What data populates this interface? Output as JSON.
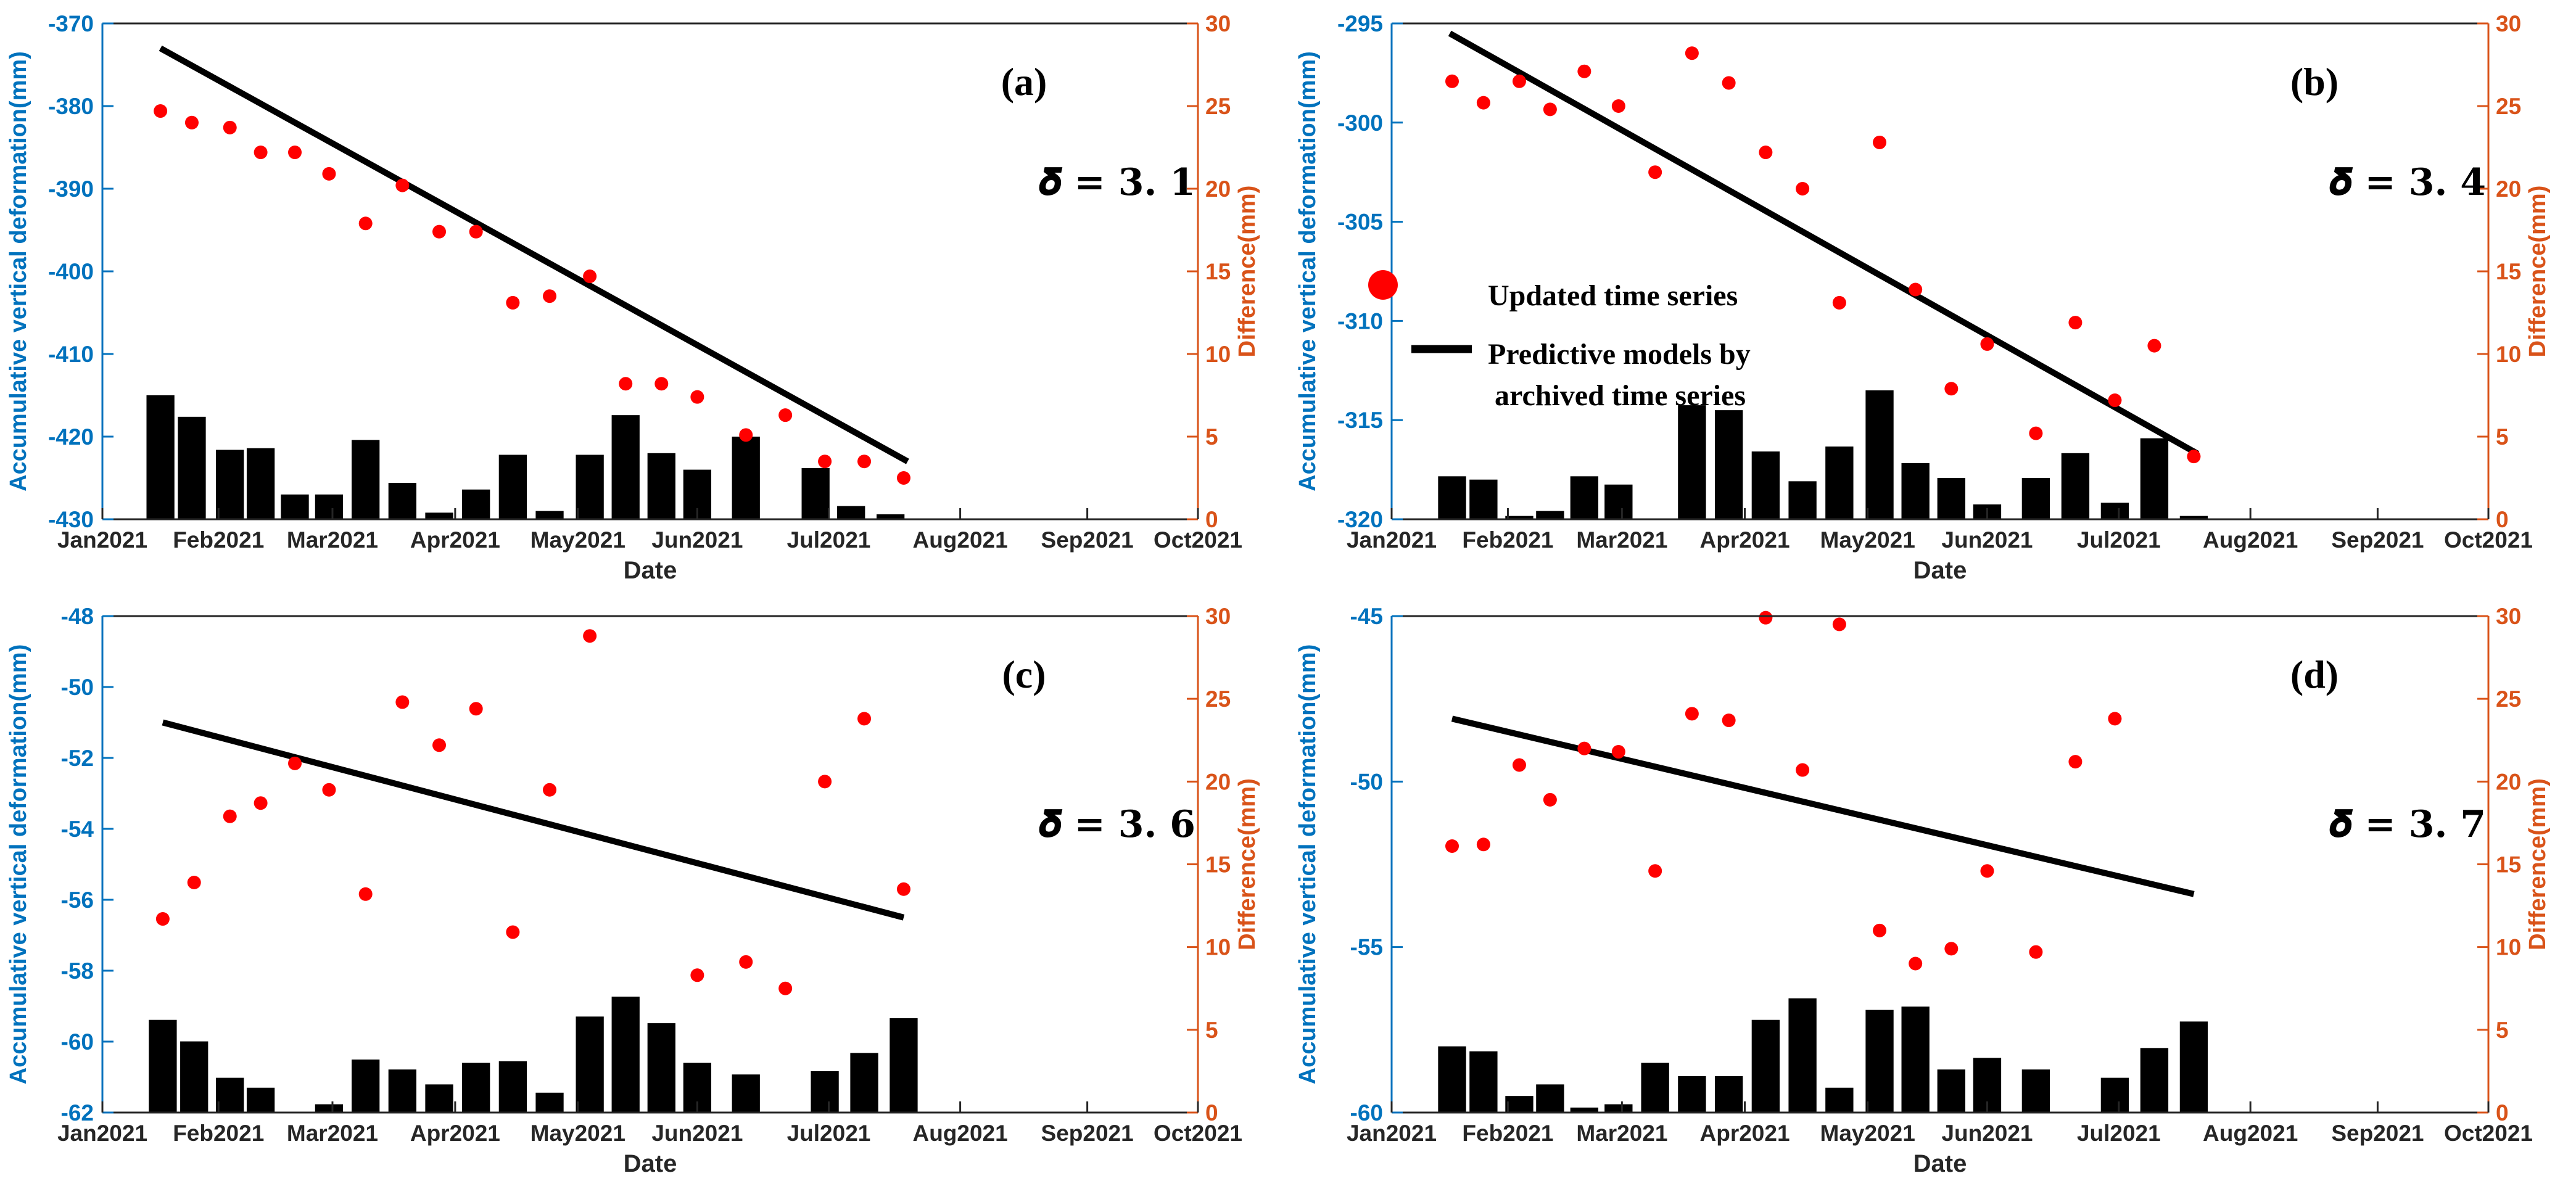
{
  "figure": {
    "x_axis_label": "Date",
    "left_axis_label": "Accumulative vertical deformation(mm)",
    "right_axis_label": "Difference(mm)",
    "x_tick_labels": [
      "Jan2021",
      "Feb2021",
      "Mar2021",
      "Apr2021",
      "May2021",
      "Jun2021",
      "Jul2021",
      "Aug2021",
      "Sep2021",
      "Oct2021"
    ],
    "colors": {
      "left_axis": "#0072BD",
      "right_axis": "#D95319",
      "bars": "#000000",
      "points": "#FF0000",
      "model_line": "#000000"
    }
  },
  "legend": {
    "points_label": "Updated time series",
    "line_label_1": "Predictive models by",
    "line_label_2": "archived time series"
  },
  "chart_data": [
    {
      "panel": "(a)",
      "delta": "𝜹 = 𝟑. 𝟏",
      "type": "bar+scatter+line",
      "x_range_months": [
        0,
        9
      ],
      "left_ylim": [
        -430,
        -370
      ],
      "left_yticks": [
        -370,
        -380,
        -390,
        -400,
        -410,
        -420,
        -430
      ],
      "right_ylim": [
        0,
        30
      ],
      "right_yticks": [
        30,
        25,
        20,
        15,
        10,
        5,
        0
      ],
      "bars_difference": {
        "x": [
          0.5,
          0.77,
          1.1,
          1.37,
          1.67,
          1.97,
          2.27,
          2.57,
          2.87,
          3.17,
          3.47,
          3.77,
          4.1,
          4.4,
          4.7,
          5.0,
          5.37,
          5.67,
          5.97,
          6.27,
          6.57,
          6.87,
          7.23,
          7.53,
          7.83
        ],
        "values": [
          7.5,
          6.2,
          4.2,
          4.3,
          1.5,
          1.5,
          4.8,
          2.2,
          0.4,
          1.8,
          3.9,
          0.5,
          3.9,
          6.3,
          4.0,
          3.0,
          5.0,
          0,
          3.1,
          0.8,
          0.3,
          0,
          0,
          0,
          0
        ]
      },
      "points_difference": {
        "x": [
          0.5,
          0.77,
          1.1,
          1.37,
          1.67,
          1.97,
          2.27,
          2.57,
          2.87,
          3.17,
          3.47,
          3.77,
          4.1,
          4.4,
          4.7,
          5.0,
          5.37,
          5.67,
          5.97,
          6.27,
          6.57
        ],
        "values": [
          24.7,
          24.0,
          23.7,
          22.2,
          22.2,
          20.9,
          17.9,
          20.2,
          17.4,
          17.4,
          13.1,
          13.5,
          14.7,
          8.2,
          8.2,
          7.4,
          5.1,
          6.3,
          3.5,
          3.5,
          2.5
        ]
      },
      "bars_x": [
        0.5,
        0.77,
        1.1,
        1.37,
        1.67,
        1.97,
        2.27,
        2.57,
        2.87,
        3.17,
        3.47,
        3.77,
        4.1,
        4.4,
        4.7,
        5.0,
        5.37,
        5.9,
        6.17,
        6.47
      ],
      "bars_values": [
        7.5,
        6.2,
        4.2,
        4.3,
        1.5,
        1.5,
        4.8,
        2.2,
        0.4,
        1.8,
        3.9,
        0.5,
        3.9,
        6.3,
        4.0,
        3.0,
        5.0,
        3.1,
        0.8,
        0.3
      ],
      "points_x": [
        0.5,
        0.77,
        1.1,
        1.37,
        1.67,
        1.97,
        2.27,
        2.57,
        2.87,
        3.17,
        3.47,
        3.77,
        4.1,
        4.4,
        4.7,
        5.0,
        5.37,
        5.67,
        5.97,
        6.27,
        6.57
      ],
      "points_values": [
        24.7,
        24.0,
        23.7,
        22.2,
        22.2,
        20.9,
        17.9,
        20.2,
        17.4,
        17.4,
        13.1,
        13.5,
        14.7,
        8.2,
        8.2,
        7.4,
        5.1,
        6.3,
        3.5,
        3.5,
        2.5
      ],
      "model_line": {
        "x": [
          0.5,
          6.6
        ],
        "y_left": [
          -373,
          -423
        ]
      }
    },
    {
      "panel": "(b)",
      "delta": "𝜹 = 𝟑. 𝟒",
      "type": "bar+scatter+line",
      "x_range_months": [
        0,
        9
      ],
      "left_ylim": [
        -320,
        -295
      ],
      "left_yticks": [
        -295,
        -300,
        -305,
        -310,
        -315,
        -320
      ],
      "right_ylim": [
        0,
        30
      ],
      "right_yticks": [
        30,
        25,
        20,
        15,
        10,
        5,
        0
      ],
      "bars_x": [
        0.52,
        0.79,
        1.1,
        1.37,
        1.67,
        1.97,
        2.27,
        2.57,
        2.87,
        3.17,
        3.47,
        3.77,
        4.1,
        4.4,
        4.7,
        5.0,
        5.37,
        5.67,
        5.97,
        6.27,
        6.57
      ],
      "bars_values": [
        2.6,
        2.4,
        0.2,
        0.5,
        2.6,
        2.1,
        0,
        6.9,
        6.6,
        4.1,
        2.3,
        4.4,
        7.8,
        3.4,
        2.5,
        0.9,
        2.5,
        4.0,
        1.0,
        4.9,
        0.2
      ],
      "points_x": [
        0.52,
        0.79,
        1.1,
        1.37,
        1.67,
        1.97,
        2.27,
        2.57,
        2.87,
        3.17,
        3.47,
        3.77,
        4.1,
        4.4,
        4.7,
        5.0,
        5.37,
        5.67,
        5.97,
        6.27,
        6.57
      ],
      "points_values": [
        26.5,
        25.2,
        26.5,
        24.8,
        27.1,
        25.0,
        21.0,
        28.2,
        26.4,
        22.2,
        20.0,
        13.1,
        22.8,
        13.9,
        7.9,
        10.6,
        5.2,
        11.9,
        7.2,
        10.5,
        3.8
      ],
      "model_line": {
        "x": [
          0.5,
          6.6
        ],
        "y_left": [
          -295.5,
          -316.7
        ]
      }
    },
    {
      "panel": "(c)",
      "delta": "𝜹 = 𝟑. 𝟔",
      "type": "bar+scatter+line",
      "x_range_months": [
        0,
        9
      ],
      "left_ylim": [
        -62,
        -48
      ],
      "left_yticks": [
        -48,
        -50,
        -52,
        -54,
        -56,
        -58,
        -60,
        -62
      ],
      "right_ylim": [
        0,
        30
      ],
      "right_yticks": [
        30,
        25,
        20,
        15,
        10,
        5,
        0
      ],
      "bars_x": [
        0.52,
        0.79,
        1.1,
        1.37,
        1.67,
        1.97,
        2.27,
        2.57,
        2.87,
        3.17,
        3.47,
        3.77,
        4.1,
        4.4,
        4.7,
        5.0,
        5.37,
        5.67,
        5.97,
        6.27,
        6.57
      ],
      "bars_values": [
        5.6,
        4.3,
        2.1,
        1.5,
        0,
        0.5,
        3.2,
        2.6,
        1.7,
        3.0,
        3.1,
        1.2,
        5.8,
        7.0,
        5.4,
        3.0,
        2.3,
        0,
        2.5,
        3.6,
        5.7
      ],
      "points_x": [
        0.52,
        0.79,
        1.1,
        1.37,
        1.67,
        1.97,
        2.27,
        2.57,
        2.87,
        3.17,
        3.47,
        3.77,
        4.1,
        4.4,
        4.7,
        5.0,
        5.37,
        5.67,
        5.97,
        6.27,
        6.57
      ],
      "points_values": [
        11.7,
        13.9,
        17.9,
        18.7,
        21.1,
        19.5,
        13.2,
        24.8,
        22.2,
        24.4,
        10.9,
        19.5,
        28.8,
        0,
        0,
        8.3,
        9.1,
        7.5,
        20.0,
        23.8,
        13.5
      ],
      "points_visible": [
        true,
        true,
        true,
        true,
        true,
        true,
        true,
        true,
        true,
        true,
        true,
        true,
        true,
        false,
        false,
        true,
        true,
        true,
        true,
        true,
        true
      ],
      "model_line": {
        "x": [
          0.52,
          6.57
        ],
        "y_left": [
          -51.0,
          -56.5
        ]
      }
    },
    {
      "panel": "(d)",
      "delta": "𝜹 = 𝟑. 𝟕",
      "type": "bar+scatter+line",
      "x_range_months": [
        0,
        9
      ],
      "left_ylim": [
        -60,
        -45
      ],
      "left_yticks": [
        -45,
        -50,
        -55,
        -60
      ],
      "right_ylim": [
        0,
        30
      ],
      "right_yticks": [
        30,
        25,
        20,
        15,
        10,
        5,
        0
      ],
      "bars_x": [
        0.52,
        0.79,
        1.1,
        1.37,
        1.67,
        1.97,
        2.27,
        2.57,
        2.87,
        3.17,
        3.47,
        3.77,
        4.1,
        4.4,
        4.7,
        5.0,
        5.37,
        5.67,
        5.97,
        6.27,
        6.57
      ],
      "bars_values": [
        4.0,
        3.7,
        1.0,
        1.7,
        0.3,
        0.5,
        3.0,
        2.2,
        2.2,
        5.6,
        6.9,
        1.5,
        6.2,
        6.4,
        2.6,
        3.3,
        2.6,
        0,
        2.1,
        3.9,
        5.5
      ],
      "points_x": [
        0.52,
        0.79,
        1.1,
        1.37,
        1.67,
        1.97,
        2.27,
        2.57,
        2.87,
        3.17,
        3.47,
        3.77,
        4.1,
        4.4,
        4.7,
        5.0,
        5.37,
        5.67,
        5.97,
        6.27,
        6.57
      ],
      "points_values": [
        16.1,
        16.2,
        21.0,
        18.9,
        22.0,
        21.8,
        14.6,
        24.1,
        23.7,
        29.9,
        20.7,
        29.5,
        11.0,
        9.0,
        9.9,
        14.6,
        9.7,
        21.2,
        23.8,
        0,
        0
      ],
      "points_visible": [
        true,
        true,
        true,
        true,
        true,
        true,
        true,
        true,
        true,
        true,
        true,
        true,
        true,
        true,
        true,
        true,
        true,
        true,
        true,
        false,
        false
      ],
      "model_line": {
        "x": [
          0.52,
          6.57
        ],
        "y_left": [
          -48.1,
          -53.4
        ]
      }
    }
  ]
}
